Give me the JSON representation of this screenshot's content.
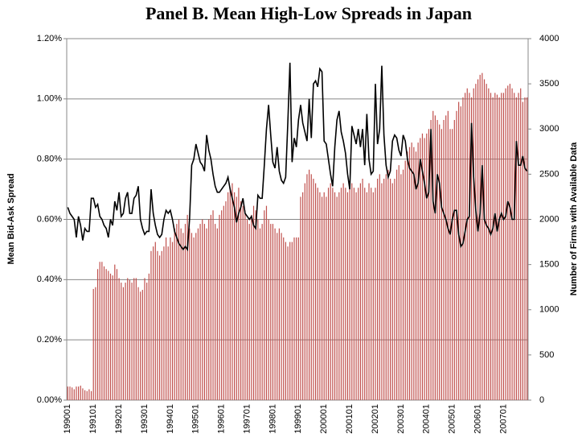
{
  "chart_data": {
    "type": "bar",
    "title": "Panel B. Mean High-Low Spreads in Japan",
    "y_label": "Mean Bid-Ask Spread",
    "y2_label": "Number of Firms  with Available Data",
    "categories": [
      "199001",
      null,
      null,
      null,
      null,
      null,
      null,
      null,
      null,
      null,
      null,
      null,
      "199101",
      null,
      null,
      null,
      null,
      null,
      null,
      null,
      null,
      null,
      null,
      null,
      "199201",
      null,
      null,
      null,
      null,
      null,
      null,
      null,
      null,
      null,
      null,
      null,
      "199301",
      null,
      null,
      null,
      null,
      null,
      null,
      null,
      null,
      null,
      null,
      null,
      "199401",
      null,
      null,
      null,
      null,
      null,
      null,
      null,
      null,
      null,
      null,
      null,
      "199501",
      null,
      null,
      null,
      null,
      null,
      null,
      null,
      null,
      null,
      null,
      null,
      "199601",
      null,
      null,
      null,
      null,
      null,
      null,
      null,
      null,
      null,
      null,
      null,
      "199701",
      null,
      null,
      null,
      null,
      null,
      null,
      null,
      null,
      null,
      null,
      null,
      "199801",
      null,
      null,
      null,
      null,
      null,
      null,
      null,
      null,
      null,
      null,
      null,
      "199901",
      null,
      null,
      null,
      null,
      null,
      null,
      null,
      null,
      null,
      null,
      null,
      "200001",
      null,
      null,
      null,
      null,
      null,
      null,
      null,
      null,
      null,
      null,
      null,
      "200101",
      null,
      null,
      null,
      null,
      null,
      null,
      null,
      null,
      null,
      null,
      null,
      "200201",
      null,
      null,
      null,
      null,
      null,
      null,
      null,
      null,
      null,
      null,
      null,
      "200301",
      null,
      null,
      null,
      null,
      null,
      null,
      null,
      null,
      null,
      null,
      null,
      "200401",
      null,
      null,
      null,
      null,
      null,
      null,
      null,
      null,
      null,
      null,
      null,
      "200501",
      null,
      null,
      null,
      null,
      null,
      null,
      null,
      null,
      null,
      null,
      null,
      "200601",
      null,
      null,
      null,
      null,
      null,
      null,
      null,
      null,
      null,
      null,
      null,
      "200701",
      null,
      null,
      null,
      null,
      null,
      null,
      null,
      null,
      null,
      null,
      null
    ],
    "series": [
      {
        "type": "bar",
        "axis": "y2",
        "color": "#c0504d",
        "values": [
          150,
          150,
          140,
          120,
          150,
          150,
          160,
          130,
          110,
          100,
          120,
          100,
          1230,
          1250,
          1450,
          1530,
          1530,
          1480,
          1450,
          1430,
          1400,
          1380,
          1500,
          1450,
          1350,
          1300,
          1250,
          1300,
          1350,
          1330,
          1300,
          1350,
          1350,
          1250,
          1200,
          1220,
          1350,
          1300,
          1400,
          1650,
          1700,
          1750,
          1650,
          1600,
          1650,
          1700,
          1800,
          1700,
          1800,
          1750,
          1900,
          1950,
          2000,
          1900,
          1850,
          1950,
          2050,
          1900,
          1850,
          1800,
          1850,
          1900,
          1950,
          2000,
          1950,
          1900,
          2000,
          2050,
          2100,
          1950,
          1900,
          2050,
          2100,
          2150,
          2200,
          2300,
          2350,
          2400,
          2300,
          2250,
          2350,
          2200,
          2150,
          2100,
          2000,
          1950,
          2050,
          2150,
          2100,
          2000,
          1900,
          1950,
          2100,
          2150,
          2000,
          1950,
          1950,
          1900,
          1850,
          1900,
          1850,
          1800,
          1750,
          1700,
          1750,
          1750,
          1800,
          1800,
          1800,
          2250,
          2300,
          2400,
          2500,
          2550,
          2500,
          2450,
          2400,
          2350,
          2300,
          2250,
          2300,
          2250,
          2350,
          2400,
          2350,
          2300,
          2250,
          2300,
          2350,
          2400,
          2350,
          2300,
          2350,
          2400,
          2350,
          2300,
          2350,
          2400,
          2450,
          2350,
          2300,
          2400,
          2350,
          2300,
          2350,
          2450,
          2500,
          2400,
          2450,
          2500,
          2550,
          2450,
          2400,
          2450,
          2550,
          2600,
          2500,
          2550,
          2650,
          2750,
          2800,
          2850,
          2800,
          2750,
          2850,
          2900,
          2950,
          2900,
          2950,
          3000,
          3100,
          3200,
          3150,
          3100,
          3050,
          3000,
          3100,
          3150,
          3200,
          3000,
          3000,
          3100,
          3200,
          3300,
          3250,
          3350,
          3400,
          3450,
          3400,
          3350,
          3450,
          3500,
          3550,
          3600,
          3620,
          3550,
          3500,
          3450,
          3400,
          3350,
          3400,
          3380,
          3350,
          3400,
          3400,
          3450,
          3480,
          3500,
          3450,
          3400,
          3350,
          3400,
          3450,
          3300,
          3350,
          3350
        ]
      },
      {
        "type": "line",
        "color": "#000000",
        "values": [
          0.64,
          0.62,
          0.61,
          0.6,
          0.54,
          0.61,
          0.58,
          0.53,
          0.57,
          0.56,
          0.56,
          0.67,
          0.67,
          0.64,
          0.65,
          0.61,
          0.6,
          0.58,
          0.57,
          0.54,
          0.6,
          0.58,
          0.66,
          0.63,
          0.69,
          0.61,
          0.62,
          0.67,
          0.69,
          0.62,
          0.62,
          0.67,
          0.68,
          0.71,
          0.6,
          0.57,
          0.55,
          0.56,
          0.56,
          0.7,
          0.62,
          0.58,
          0.55,
          0.54,
          0.55,
          0.6,
          0.63,
          0.62,
          0.63,
          0.6,
          0.56,
          0.54,
          0.52,
          0.51,
          0.5,
          0.51,
          0.5,
          0.6,
          0.78,
          0.8,
          0.85,
          0.82,
          0.79,
          0.78,
          0.76,
          0.88,
          0.83,
          0.8,
          0.75,
          0.71,
          0.69,
          0.69,
          0.7,
          0.71,
          0.72,
          0.74,
          0.7,
          0.67,
          0.64,
          0.59,
          0.62,
          0.64,
          0.67,
          0.62,
          0.61,
          0.6,
          0.61,
          0.58,
          0.57,
          0.68,
          0.67,
          0.67,
          0.78,
          0.9,
          0.98,
          0.88,
          0.79,
          0.77,
          0.84,
          0.76,
          0.73,
          0.72,
          0.74,
          0.92,
          1.12,
          0.79,
          0.87,
          0.84,
          0.93,
          0.98,
          0.92,
          0.89,
          0.86,
          1.0,
          0.87,
          1.05,
          1.06,
          1.04,
          1.1,
          1.09,
          0.86,
          0.85,
          0.8,
          0.75,
          0.71,
          0.84,
          0.93,
          0.96,
          0.89,
          0.86,
          0.82,
          0.75,
          0.7,
          0.91,
          0.88,
          0.85,
          0.9,
          0.84,
          0.9,
          0.78,
          0.95,
          0.8,
          0.75,
          0.76,
          1.05,
          0.85,
          0.9,
          1.11,
          0.88,
          0.78,
          0.74,
          0.76,
          0.86,
          0.88,
          0.87,
          0.83,
          0.81,
          0.88,
          0.86,
          0.8,
          0.77,
          0.76,
          0.75,
          0.7,
          0.72,
          0.8,
          0.76,
          0.72,
          0.67,
          0.69,
          0.9,
          0.66,
          0.62,
          0.75,
          0.72,
          0.64,
          0.62,
          0.6,
          0.57,
          0.55,
          0.6,
          0.63,
          0.63,
          0.55,
          0.51,
          0.52,
          0.56,
          0.6,
          0.61,
          0.92,
          0.74,
          0.63,
          0.56,
          0.62,
          0.78,
          0.6,
          0.58,
          0.57,
          0.55,
          0.57,
          0.62,
          0.56,
          0.6,
          0.62,
          0.6,
          0.61,
          0.66,
          0.64,
          0.6,
          0.6,
          0.86,
          0.78,
          0.78,
          0.81,
          0.77,
          0.76
        ]
      }
    ],
    "ylim": [
      0,
      1.2
    ],
    "yticks": [
      {
        "value": 0,
        "label": "0.00%"
      },
      {
        "value": 0.2,
        "label": "0.20%"
      },
      {
        "value": 0.4,
        "label": "0.40%"
      },
      {
        "value": 0.6,
        "label": "0.60%"
      },
      {
        "value": 0.8,
        "label": "0.80%"
      },
      {
        "value": 1.0,
        "label": "1.00%"
      },
      {
        "value": 1.2,
        "label": "1.20%"
      }
    ],
    "y2lim": [
      0,
      4000
    ],
    "y2ticks": [
      0,
      500,
      1000,
      1500,
      2000,
      2500,
      3000,
      3500,
      4000
    ],
    "grid": true
  }
}
